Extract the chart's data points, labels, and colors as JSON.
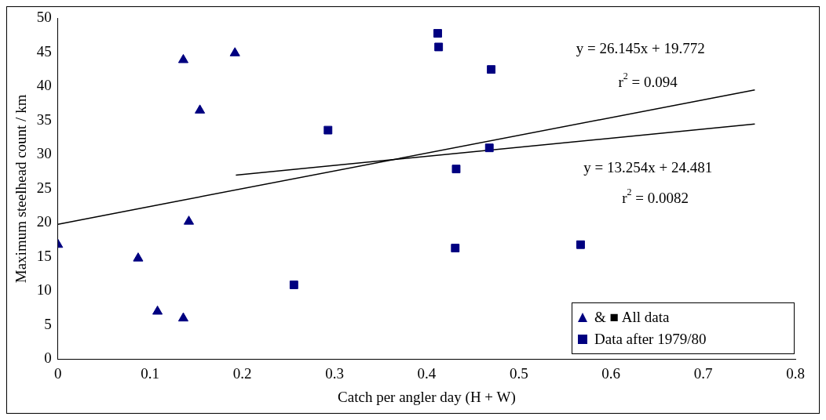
{
  "chart_data": {
    "type": "scatter",
    "xlabel": "Catch per angler day (H + W)",
    "ylabel": "Maximum steelhead count / km",
    "xlim": [
      0,
      0.8
    ],
    "xticks": [
      0,
      0.1,
      0.2,
      0.3,
      0.4,
      0.5,
      0.6,
      0.7,
      0.8
    ],
    "ylim": [
      0,
      50
    ],
    "yticks": [
      0,
      5,
      10,
      15,
      20,
      25,
      30,
      35,
      40,
      45,
      50
    ],
    "legend": "bottom right",
    "grid": false,
    "series": [
      {
        "name": "& ■ All data",
        "type": "scatter",
        "marker": "triangle",
        "color": "#000080",
        "x": [
          0,
          0.087,
          0.108,
          0.136,
          0.136,
          0.142,
          0.154,
          0.192
        ],
        "values": [
          16.8,
          14.8,
          7.0,
          6.0,
          43.9,
          20.2,
          36.5,
          44.9
        ]
      },
      {
        "name": "Data after 1979/80",
        "type": "scatter",
        "marker": "square",
        "color": "#000080",
        "x": [
          0.256,
          0.293,
          0.412,
          0.413,
          0.47,
          0.432,
          0.431,
          0.468,
          0.567
        ],
        "values": [
          10.9,
          33.6,
          47.8,
          45.8,
          42.5,
          27.9,
          16.3,
          31.0,
          16.8
        ]
      },
      {
        "type": "line",
        "marker": "none",
        "color": "#000000",
        "x": [
          0,
          0.756
        ],
        "values": [
          19.8,
          39.5
        ]
      },
      {
        "type": "line",
        "marker": "none",
        "color": "#000000",
        "x": [
          0.193,
          0.756
        ],
        "values": [
          27.0,
          34.5
        ]
      }
    ],
    "annotations": [
      "y = 26.145x + 19.772",
      "r$^{2}$ = 0.094",
      "y = 13.254x + 24.481",
      "r$^{2}$ = 0.0082"
    ]
  }
}
